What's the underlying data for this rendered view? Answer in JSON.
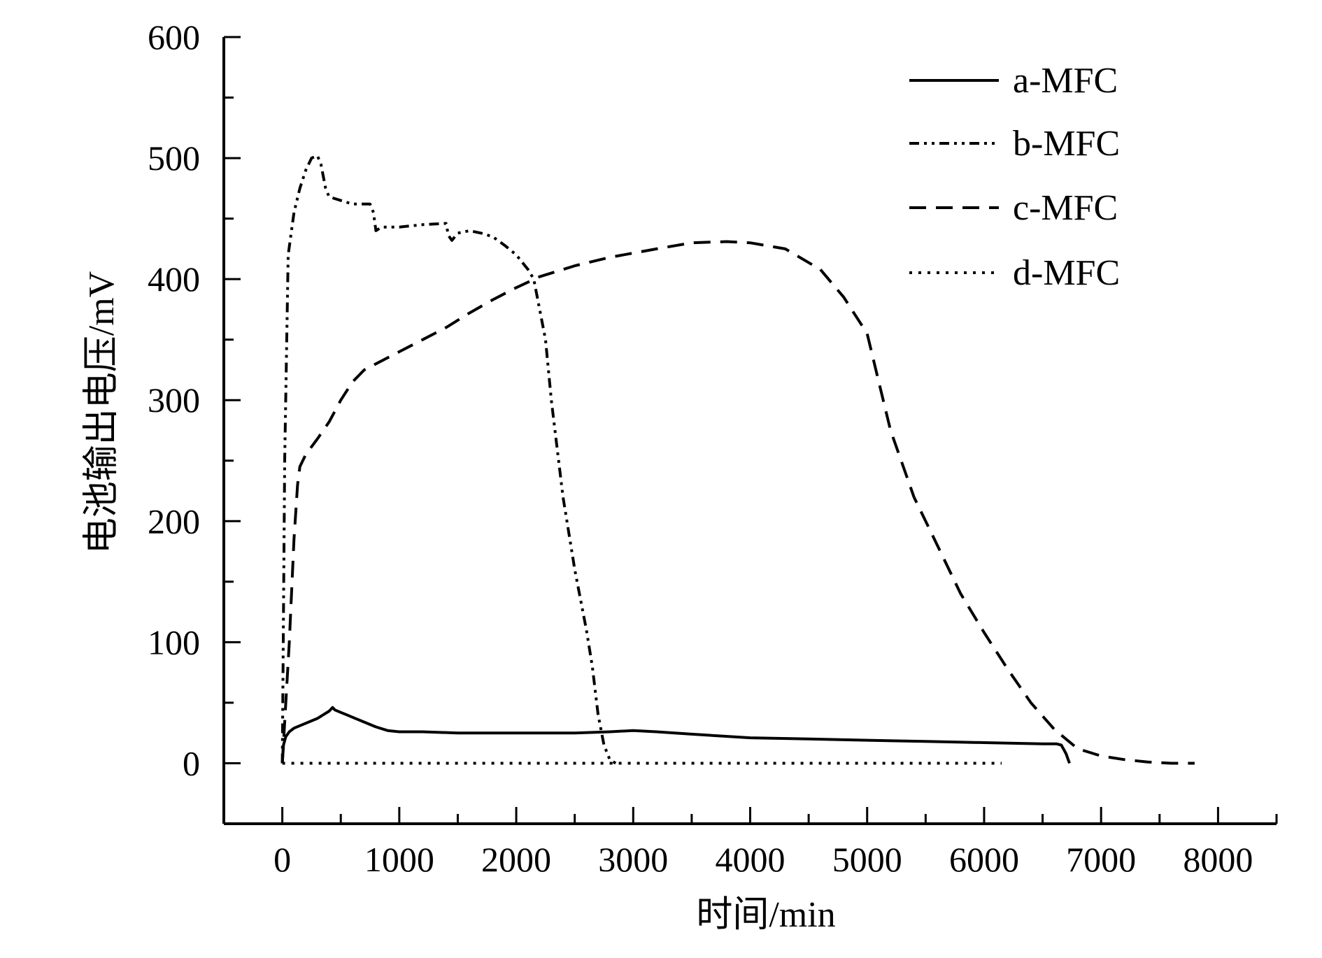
{
  "chart_data": {
    "type": "line",
    "title": "",
    "xlabel": "时间/min",
    "ylabel": "电池输出电压/mV",
    "xlim": [
      -500,
      8500
    ],
    "ylim": [
      -50,
      600
    ],
    "xticks": [
      0,
      1000,
      2000,
      3000,
      4000,
      5000,
      6000,
      7000,
      8000
    ],
    "yticks": [
      0,
      100,
      200,
      300,
      400,
      500,
      600
    ],
    "xtick_labels": [
      "0",
      "1000",
      "2000",
      "3000",
      "4000",
      "5000",
      "6000",
      "7000",
      "8000"
    ],
    "ytick_labels": [
      "0",
      "100",
      "200",
      "300",
      "400",
      "500",
      "600"
    ],
    "grid": false,
    "legend_position": "top-right",
    "series": [
      {
        "name": "a-MFC",
        "style": "solid",
        "x": [
          0,
          10,
          30,
          60,
          100,
          150,
          200,
          250,
          300,
          350,
          400,
          430,
          450,
          500,
          550,
          600,
          700,
          800,
          900,
          1000,
          1200,
          1500,
          2000,
          2500,
          2800,
          3000,
          3200,
          3500,
          4000,
          4500,
          5000,
          5500,
          6000,
          6500,
          6620,
          6660,
          6700,
          6730
        ],
        "y": [
          0,
          15,
          22,
          26,
          29,
          31,
          33,
          35,
          37,
          40,
          43,
          46,
          44,
          42,
          40,
          38,
          34,
          30,
          27,
          26,
          26,
          25,
          25,
          25,
          26,
          27,
          26,
          24,
          21,
          20,
          19,
          18,
          17,
          16,
          16,
          15,
          8,
          0
        ]
      },
      {
        "name": "b-MFC",
        "style": "dash-dot-dot",
        "x": [
          0,
          20,
          50,
          100,
          150,
          200,
          250,
          300,
          330,
          370,
          400,
          500,
          600,
          750,
          780,
          800,
          850,
          1000,
          1200,
          1400,
          1420,
          1450,
          1500,
          1600,
          1700,
          1800,
          1900,
          2000,
          2100,
          2150,
          2200,
          2250,
          2300,
          2400,
          2500,
          2600,
          2650,
          2700,
          2750,
          2800,
          2850
        ],
        "y": [
          0,
          250,
          420,
          455,
          475,
          490,
          500,
          502,
          495,
          475,
          468,
          465,
          462,
          462,
          455,
          440,
          443,
          443,
          445,
          446,
          436,
          432,
          438,
          440,
          438,
          435,
          428,
          420,
          408,
          400,
          375,
          350,
          300,
          220,
          160,
          110,
          80,
          40,
          15,
          3,
          0
        ]
      },
      {
        "name": "c-MFC",
        "style": "dashed",
        "x": [
          0,
          60,
          100,
          130,
          150,
          200,
          300,
          400,
          500,
          600,
          700,
          800,
          1000,
          1200,
          1400,
          1600,
          1800,
          2000,
          2200,
          2500,
          2800,
          3200,
          3500,
          3800,
          4000,
          4300,
          4600,
          4800,
          5000,
          5100,
          5200,
          5400,
          5600,
          5800,
          6000,
          6200,
          6400,
          6600,
          6800,
          7000,
          7200,
          7400,
          7600,
          7800
        ],
        "y": [
          0,
          100,
          185,
          230,
          245,
          255,
          268,
          282,
          300,
          315,
          325,
          330,
          340,
          350,
          360,
          372,
          383,
          393,
          402,
          411,
          418,
          425,
          430,
          431,
          430,
          425,
          408,
          385,
          355,
          315,
          275,
          220,
          180,
          140,
          108,
          78,
          50,
          28,
          12,
          6,
          3,
          1,
          0,
          0
        ]
      },
      {
        "name": "d-MFC",
        "style": "dotted",
        "x": [
          0,
          500,
          1000,
          1500,
          2000,
          2500,
          3000,
          3500,
          4000,
          4500,
          5000,
          5500,
          6000,
          6150
        ],
        "y": [
          0,
          0,
          0,
          0,
          0,
          0,
          0,
          0,
          0,
          0,
          0,
          0,
          0,
          0
        ]
      }
    ]
  }
}
